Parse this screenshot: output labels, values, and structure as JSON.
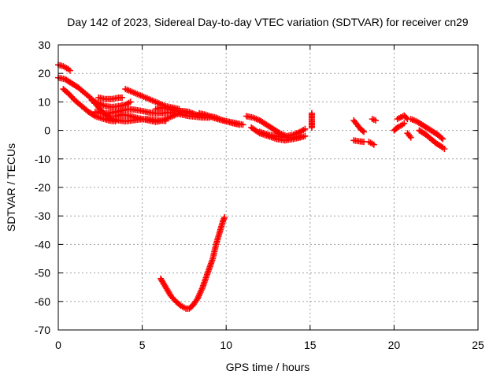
{
  "chart_data": {
    "type": "scatter",
    "title": "Day 142 of 2023, Sidereal Day-to-day VTEC variation (SDTVAR) for receiver cn29",
    "xlabel": "GPS time / hours",
    "ylabel": "SDTVAR / TECUs",
    "xlim": [
      0,
      25
    ],
    "ylim": [
      -70,
      30
    ],
    "xticks": [
      "0",
      "5",
      "10",
      "15",
      "20",
      "25"
    ],
    "yticks": [
      "30",
      "20",
      "10",
      "0",
      "-10",
      "-20",
      "-30",
      "-40",
      "-50",
      "-60",
      "-70"
    ],
    "grid": true,
    "marker": "plus",
    "color": "#ff0000",
    "series": [
      {
        "name": "arc-1",
        "points": [
          [
            0.0,
            23
          ],
          [
            0.3,
            22.5
          ],
          [
            0.6,
            21.5
          ],
          [
            0.7,
            21
          ]
        ]
      },
      {
        "name": "arc-2",
        "points": [
          [
            0.0,
            18.5
          ],
          [
            0.4,
            18
          ],
          [
            0.8,
            16.5
          ],
          [
            1.2,
            15
          ],
          [
            1.6,
            13
          ],
          [
            2.0,
            11
          ],
          [
            2.4,
            8
          ],
          [
            2.8,
            5.5
          ],
          [
            3.2,
            4
          ],
          [
            3.6,
            3.5
          ],
          [
            4.0,
            3.2
          ],
          [
            4.4,
            3.5
          ],
          [
            4.8,
            3.8
          ],
          [
            5.2,
            4
          ],
          [
            5.6,
            3.8
          ],
          [
            6.0,
            3.5
          ],
          [
            6.4,
            3.3
          ]
        ]
      },
      {
        "name": "arc-3",
        "points": [
          [
            0.3,
            14.5
          ],
          [
            0.6,
            13
          ],
          [
            1.0,
            10.5
          ],
          [
            1.4,
            8.5
          ],
          [
            1.8,
            6.5
          ],
          [
            2.2,
            5
          ],
          [
            2.6,
            4.2
          ],
          [
            3.0,
            3.5
          ],
          [
            3.4,
            3.2
          ]
        ]
      },
      {
        "name": "arc-4",
        "points": [
          [
            2.0,
            10.5
          ],
          [
            2.4,
            9.5
          ],
          [
            2.8,
            8.5
          ],
          [
            3.2,
            8.2
          ],
          [
            3.6,
            8.5
          ],
          [
            4.0,
            9
          ],
          [
            4.3,
            10
          ]
        ]
      },
      {
        "name": "arc-5",
        "points": [
          [
            2.4,
            11.5
          ],
          [
            2.8,
            11
          ],
          [
            3.2,
            11
          ],
          [
            3.6,
            11.5
          ],
          [
            3.8,
            11.5
          ]
        ]
      },
      {
        "name": "arc-6",
        "points": [
          [
            4.0,
            14.5
          ],
          [
            4.4,
            13.5
          ],
          [
            4.8,
            12.5
          ],
          [
            5.2,
            11.5
          ],
          [
            5.6,
            10.5
          ],
          [
            6.0,
            9.5
          ],
          [
            6.4,
            8.5
          ],
          [
            6.8,
            8
          ],
          [
            7.2,
            7.5
          ]
        ]
      },
      {
        "name": "arc-7",
        "points": [
          [
            2.2,
            6.5
          ],
          [
            2.6,
            6
          ],
          [
            3.0,
            6
          ],
          [
            3.4,
            6.5
          ],
          [
            3.8,
            7
          ],
          [
            4.2,
            7.5
          ],
          [
            4.6,
            7.2
          ],
          [
            5.0,
            6.8
          ],
          [
            5.4,
            6.3
          ],
          [
            5.8,
            6
          ],
          [
            6.2,
            6
          ],
          [
            6.6,
            6.3
          ],
          [
            7.0,
            6
          ],
          [
            7.4,
            5.5
          ],
          [
            7.8,
            5
          ],
          [
            8.2,
            4.8
          ],
          [
            8.6,
            4.5
          ],
          [
            9.0,
            4.5
          ]
        ]
      },
      {
        "name": "arc-8",
        "points": [
          [
            3.4,
            5
          ],
          [
            3.8,
            5.5
          ],
          [
            4.2,
            5.2
          ],
          [
            4.6,
            4.5
          ],
          [
            5.0,
            4
          ],
          [
            5.4,
            3.5
          ],
          [
            5.8,
            3
          ],
          [
            6.2,
            3.5
          ],
          [
            6.6,
            4.5
          ],
          [
            7.0,
            5.5
          ],
          [
            7.4,
            6.5
          ],
          [
            7.8,
            6
          ],
          [
            8.2,
            5.5
          ],
          [
            8.6,
            5.2
          ],
          [
            9.0,
            5
          ],
          [
            9.4,
            4.5
          ],
          [
            9.8,
            3.5
          ],
          [
            10.2,
            3
          ],
          [
            10.6,
            2.5
          ],
          [
            11.0,
            2
          ]
        ]
      },
      {
        "name": "arc-9",
        "points": [
          [
            5.8,
            7.5
          ],
          [
            6.2,
            8
          ],
          [
            6.6,
            7.5
          ],
          [
            7.0,
            6.8
          ],
          [
            7.4,
            6.8
          ],
          [
            7.8,
            6.5
          ],
          [
            8.2,
            5.5
          ]
        ]
      },
      {
        "name": "arc-10",
        "points": [
          [
            8.4,
            6
          ],
          [
            8.8,
            5.5
          ],
          [
            9.2,
            4.5
          ],
          [
            9.6,
            3.8
          ],
          [
            10.0,
            3.2
          ],
          [
            10.4,
            2.5
          ],
          [
            10.8,
            2
          ]
        ]
      },
      {
        "name": "arc-11",
        "points": [
          [
            11.2,
            5
          ],
          [
            11.6,
            4.5
          ],
          [
            12.0,
            3.5
          ],
          [
            12.4,
            2
          ],
          [
            12.8,
            0.5
          ],
          [
            13.2,
            -1
          ],
          [
            13.6,
            -2
          ],
          [
            14.0,
            -1.5
          ],
          [
            14.4,
            -0.5
          ],
          [
            14.7,
            0.5
          ]
        ]
      },
      {
        "name": "arc-12",
        "points": [
          [
            11.5,
            1
          ],
          [
            12.0,
            -1
          ],
          [
            12.5,
            -2
          ],
          [
            13.0,
            -3
          ],
          [
            13.5,
            -3.5
          ],
          [
            14.0,
            -3
          ],
          [
            14.4,
            -2.5
          ],
          [
            14.7,
            -2
          ]
        ]
      },
      {
        "name": "arc-13",
        "points": [
          [
            12.0,
            -0.5
          ],
          [
            12.5,
            -1.5
          ],
          [
            13.0,
            -2
          ],
          [
            13.5,
            -2.5
          ],
          [
            14.0,
            -2.5
          ],
          [
            14.5,
            -2
          ]
        ]
      },
      {
        "name": "arc-14",
        "points": [
          [
            15.1,
            6
          ],
          [
            15.1,
            5
          ],
          [
            15.1,
            4
          ],
          [
            15.1,
            3
          ],
          [
            15.1,
            2
          ],
          [
            15.1,
            1
          ]
        ]
      },
      {
        "name": "arc-15",
        "points": [
          [
            17.6,
            3.5
          ],
          [
            17.8,
            2
          ],
          [
            18.0,
            0.5
          ],
          [
            18.2,
            -0.5
          ]
        ]
      },
      {
        "name": "arc-16",
        "points": [
          [
            17.6,
            -3.5
          ],
          [
            17.9,
            -3.8
          ],
          [
            18.2,
            -4
          ]
        ]
      },
      {
        "name": "arc-17",
        "points": [
          [
            18.5,
            -4
          ],
          [
            18.8,
            -5
          ]
        ]
      },
      {
        "name": "arc-18",
        "points": [
          [
            18.7,
            4
          ],
          [
            18.9,
            3.5
          ]
        ]
      },
      {
        "name": "arc-19",
        "points": [
          [
            20.0,
            0
          ],
          [
            20.2,
            1
          ],
          [
            20.5,
            2
          ],
          [
            20.6,
            2.5
          ]
        ]
      },
      {
        "name": "arc-20",
        "points": [
          [
            20.2,
            4
          ],
          [
            20.6,
            5.2
          ],
          [
            20.8,
            4
          ]
        ]
      },
      {
        "name": "arc-21",
        "points": [
          [
            20.8,
            -1
          ],
          [
            21.0,
            -2.5
          ]
        ]
      },
      {
        "name": "arc-22",
        "points": [
          [
            21.0,
            4
          ],
          [
            21.4,
            3
          ],
          [
            21.8,
            1.5
          ],
          [
            22.2,
            0
          ],
          [
            22.6,
            -1.5
          ],
          [
            22.9,
            -3
          ]
        ]
      },
      {
        "name": "arc-23",
        "points": [
          [
            21.5,
            0
          ],
          [
            21.9,
            -1.5
          ],
          [
            22.2,
            -3
          ],
          [
            22.5,
            -4.5
          ],
          [
            22.9,
            -6
          ],
          [
            23.0,
            -6.5
          ]
        ]
      },
      {
        "name": "arc-24",
        "points": [
          [
            6.1,
            -52
          ],
          [
            6.4,
            -55
          ],
          [
            6.7,
            -58
          ],
          [
            7.0,
            -60
          ],
          [
            7.3,
            -61.5
          ],
          [
            7.6,
            -62.5
          ],
          [
            7.8,
            -62.5
          ],
          [
            8.0,
            -61.5
          ],
          [
            8.3,
            -59
          ],
          [
            8.6,
            -55
          ],
          [
            8.9,
            -50
          ],
          [
            9.2,
            -45
          ],
          [
            9.4,
            -40
          ],
          [
            9.6,
            -36
          ],
          [
            9.8,
            -32
          ],
          [
            9.9,
            -30.5
          ]
        ]
      }
    ]
  }
}
